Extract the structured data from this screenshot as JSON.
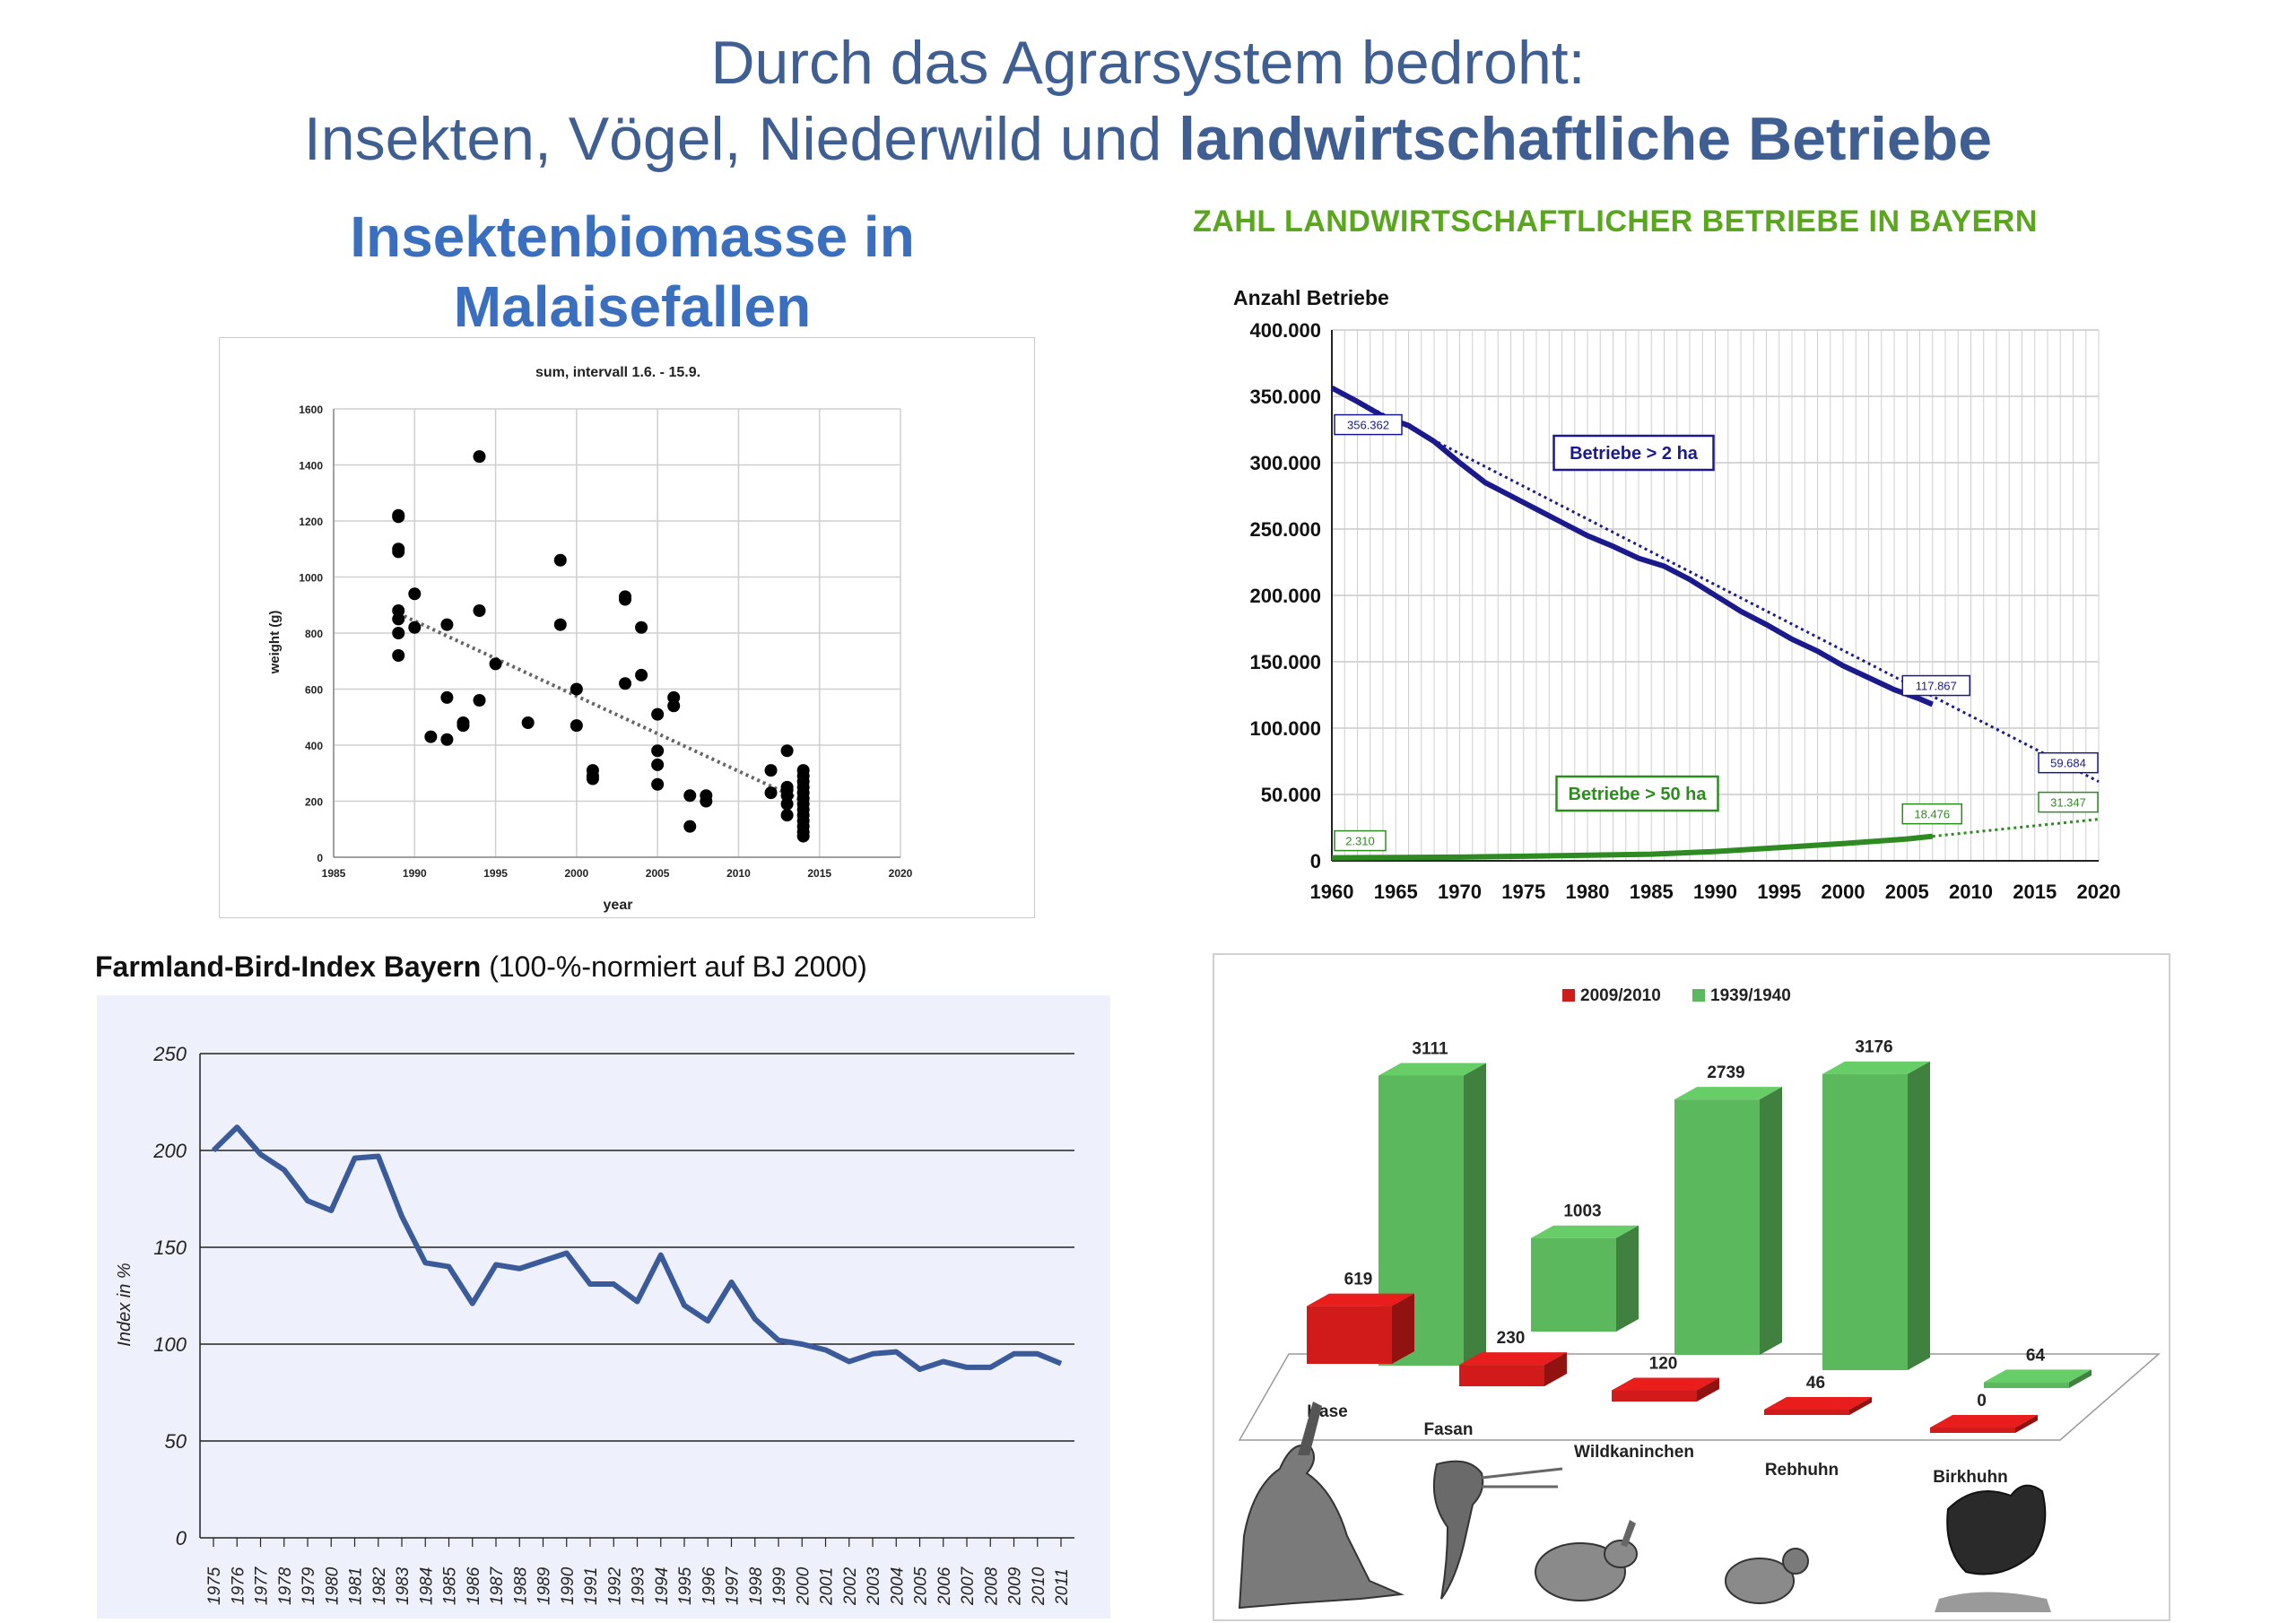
{
  "header": {
    "title_line1": "Durch das Agrarsystem bedroht:",
    "title_line2_prefix": "Insekten, Vögel, Niederwild und ",
    "title_line2_bold": "landwirtschaftliche Betriebe"
  },
  "colors": {
    "title": "#3f5f93",
    "insect_heading": "#3a6fbf",
    "betriebe_heading": "#5aa61e",
    "betriebe_2ha": "#1a1a8c",
    "betriebe_50ha": "#2e8b22",
    "bird_line": "#3a5a9a",
    "bar_red": "#d11a1a",
    "bar_green": "#5cb85c"
  },
  "chart_data": [
    {
      "id": "insekten",
      "type": "scatter",
      "heading_line1": "Insektenbiomasse in",
      "heading_line2": "Malaisefallen",
      "title": "sum, intervall 1.6. - 15.9.",
      "xlabel": "year",
      "ylabel": "weight (g)",
      "xlim": [
        1985,
        2020
      ],
      "ylim": [
        0,
        1600
      ],
      "xticks": [
        1985,
        1990,
        1995,
        2000,
        2005,
        2010,
        2015,
        2020
      ],
      "yticks": [
        0,
        200,
        400,
        600,
        800,
        1000,
        1200,
        1400,
        1600
      ],
      "grid": true,
      "trendline": {
        "x": [
          1989,
          2014
        ],
        "y": [
          870,
          200
        ]
      },
      "points": [
        [
          1989,
          1215
        ],
        [
          1989,
          1220
        ],
        [
          1989,
          1100
        ],
        [
          1989,
          1090
        ],
        [
          1989,
          880
        ],
        [
          1989,
          850
        ],
        [
          1989,
          800
        ],
        [
          1989,
          720
        ],
        [
          1990,
          940
        ],
        [
          1990,
          820
        ],
        [
          1991,
          430
        ],
        [
          1992,
          830
        ],
        [
          1992,
          570
        ],
        [
          1992,
          420
        ],
        [
          1993,
          480
        ],
        [
          1993,
          470
        ],
        [
          1994,
          1430
        ],
        [
          1994,
          880
        ],
        [
          1994,
          560
        ],
        [
          1995,
          690
        ],
        [
          1997,
          480
        ],
        [
          1999,
          1060
        ],
        [
          1999,
          830
        ],
        [
          2000,
          600
        ],
        [
          2000,
          470
        ],
        [
          2001,
          310
        ],
        [
          2001,
          290
        ],
        [
          2001,
          280
        ],
        [
          2003,
          930
        ],
        [
          2003,
          920
        ],
        [
          2003,
          620
        ],
        [
          2004,
          820
        ],
        [
          2004,
          650
        ],
        [
          2005,
          510
        ],
        [
          2005,
          380
        ],
        [
          2005,
          330
        ],
        [
          2005,
          260
        ],
        [
          2006,
          570
        ],
        [
          2006,
          540
        ],
        [
          2007,
          220
        ],
        [
          2007,
          110
        ],
        [
          2008,
          220
        ],
        [
          2008,
          200
        ],
        [
          2012,
          310
        ],
        [
          2012,
          230
        ],
        [
          2013,
          380
        ],
        [
          2013,
          250
        ],
        [
          2013,
          240
        ],
        [
          2013,
          220
        ],
        [
          2013,
          190
        ],
        [
          2013,
          150
        ],
        [
          2014,
          310
        ],
        [
          2014,
          290
        ],
        [
          2014,
          270
        ],
        [
          2014,
          250
        ],
        [
          2014,
          230
        ],
        [
          2014,
          210
        ],
        [
          2014,
          190
        ],
        [
          2014,
          170
        ],
        [
          2014,
          150
        ],
        [
          2014,
          130
        ],
        [
          2014,
          110
        ],
        [
          2014,
          90
        ],
        [
          2014,
          75
        ]
      ]
    },
    {
      "id": "betriebe",
      "type": "line",
      "heading": "ZAHL LANDWIRTSCHAFTLICHER BETRIEBE IN BAYERN",
      "ylabel": "Anzahl Betriebe",
      "xlim": [
        1960,
        2020
      ],
      "ylim": [
        0,
        400000
      ],
      "xticks": [
        "1960",
        "1965",
        "1970",
        "1975",
        "1980",
        "1985",
        "1990",
        "1995",
        "2000",
        "2005",
        "2010",
        "2015",
        "2020"
      ],
      "yticks": [
        "0",
        "50.000",
        "100.000",
        "150.000",
        "200.000",
        "250.000",
        "300.000",
        "350.000",
        "400.000"
      ],
      "grid": true,
      "series": [
        {
          "name": "Betriebe > 2 ha",
          "x": [
            1960,
            1962,
            1964,
            1966,
            1968,
            1970,
            1972,
            1974,
            1976,
            1978,
            1980,
            1982,
            1984,
            1986,
            1988,
            1990,
            1992,
            1994,
            1996,
            1998,
            2000,
            2002,
            2004,
            2006,
            2007
          ],
          "y": [
            356362,
            346000,
            335000,
            328000,
            316000,
            300000,
            285000,
            275000,
            265000,
            255000,
            245000,
            237000,
            228000,
            222000,
            212000,
            200000,
            188000,
            178000,
            167000,
            158000,
            147000,
            138000,
            129000,
            122000,
            117867
          ],
          "trend": {
            "x": [
              1960,
              2020
            ],
            "y": [
              356362,
              59684
            ]
          },
          "labels": [
            "356.362",
            "117.867",
            "59.684"
          ]
        },
        {
          "name": "Betriebe > 50 ha",
          "x": [
            1960,
            1965,
            1970,
            1975,
            1980,
            1985,
            1990,
            1995,
            2000,
            2005,
            2007
          ],
          "y": [
            2310,
            2500,
            2800,
            3500,
            4200,
            5000,
            7000,
            10000,
            13000,
            16500,
            18476
          ],
          "trend": {
            "x": [
              2007,
              2020
            ],
            "y": [
              18476,
              31347
            ]
          },
          "labels": [
            "2.310",
            "18.476",
            "31.347"
          ]
        }
      ]
    },
    {
      "id": "birdindex",
      "type": "line",
      "title_bold": "Farmland-Bird-Index Bayern",
      "title_rest": " (100-%-normiert auf BJ 2000)",
      "ylabel": "Index in %",
      "ylim": [
        0,
        250
      ],
      "yticks": [
        "0",
        "50",
        "100",
        "150",
        "200",
        "250"
      ],
      "categories": [
        "1975",
        "1976",
        "1977",
        "1978",
        "1979",
        "1980",
        "1981",
        "1982",
        "1983",
        "1984",
        "1985",
        "1986",
        "1987",
        "1988",
        "1989",
        "1990",
        "1991",
        "1992",
        "1993",
        "1994",
        "1995",
        "1996",
        "1997",
        "1998",
        "1999",
        "2000",
        "2001",
        "2002",
        "2003",
        "2004",
        "2005",
        "2006",
        "2007",
        "2008",
        "2009",
        "2010",
        "2011"
      ],
      "values": [
        200,
        212,
        198,
        190,
        174,
        169,
        196,
        197,
        166,
        142,
        140,
        121,
        141,
        139,
        143,
        147,
        131,
        131,
        122,
        146,
        120,
        112,
        132,
        113,
        102,
        100,
        97,
        91,
        95,
        96,
        87,
        91,
        88,
        88,
        95,
        95,
        90
      ]
    },
    {
      "id": "niederwild",
      "type": "bar",
      "categories": [
        "Hase",
        "Fasan",
        "Wildkaninchen",
        "Rebhuhn",
        "Birkhuhn"
      ],
      "series": [
        {
          "name": "2009/2010",
          "values": [
            619,
            230,
            120,
            46,
            0
          ]
        },
        {
          "name": "1939/1940",
          "values": [
            3111,
            1003,
            2739,
            3176,
            64
          ]
        }
      ],
      "legend": "top"
    }
  ]
}
